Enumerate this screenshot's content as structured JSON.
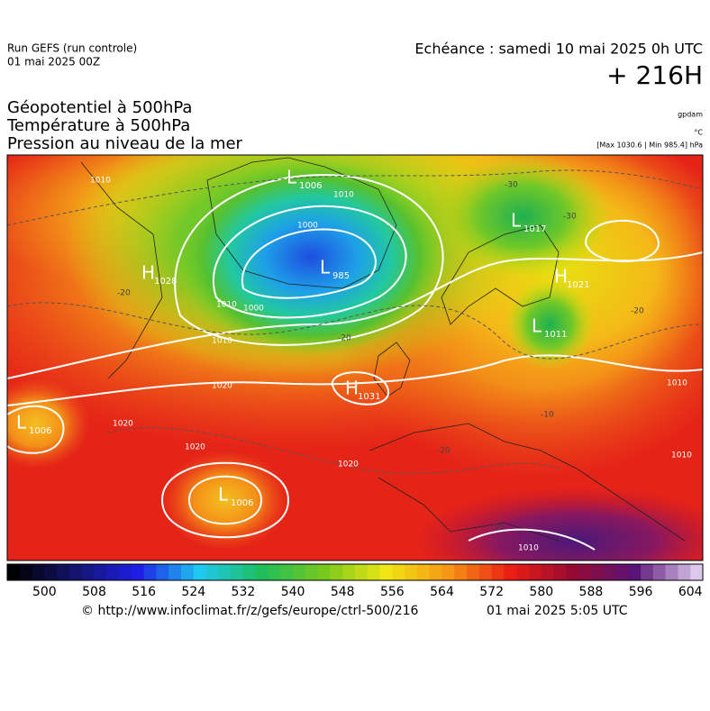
{
  "header": {
    "run": "Run GEFS (run controle)",
    "run_date": "01 mai 2025 00Z",
    "valid": "Echéance : samedi 10 mai 2025 0h UTC",
    "lead": "+ 216H"
  },
  "titles": [
    "Géopotentiel à 500hPa",
    "Température à 500hPa",
    "Pression au niveau de la mer"
  ],
  "units": {
    "geopotential": "gpdam",
    "temperature": "°C",
    "pressure": "[Max 1030.6 | Min 985.4] hPa"
  },
  "pressure_centers": [
    {
      "symbol": "L",
      "value": "1006"
    },
    {
      "symbol": "L",
      "value": "985"
    },
    {
      "symbol": "L",
      "value": "1017"
    },
    {
      "symbol": "H",
      "value": "1028"
    },
    {
      "symbol": "H",
      "value": "1021"
    },
    {
      "symbol": "L",
      "value": "1011"
    },
    {
      "symbol": "H",
      "value": "1031"
    },
    {
      "symbol": "L",
      "value": "1006"
    },
    {
      "symbol": "L",
      "value": "1006"
    }
  ],
  "isobar_labels": [
    "1010",
    "1010",
    "1000",
    "1000",
    "1010",
    "1010",
    "1020",
    "1020",
    "1020",
    "1020",
    "1010",
    "1010",
    "1010"
  ],
  "isotherm_labels": [
    "-30",
    "-20",
    "-20",
    "-30",
    "-20",
    "-10",
    "-10",
    "-20"
  ],
  "colorbar": {
    "ticks": [
      500,
      508,
      516,
      524,
      532,
      540,
      548,
      556,
      564,
      572,
      580,
      588,
      596,
      604
    ]
  },
  "footer": {
    "source": "© http://www.infoclimat.fr/z/gefs/europe/ctrl-500/216",
    "generated": "01 mai 2025  5:05 UTC"
  }
}
